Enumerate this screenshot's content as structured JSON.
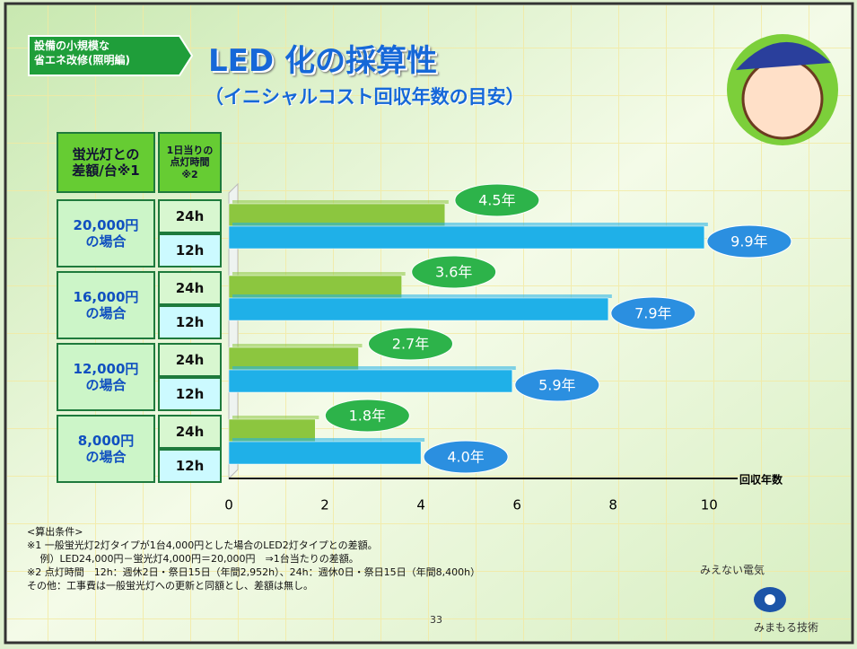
{
  "slide": {
    "tag": "設備の小規模な\n省エネ改修(照明編)",
    "title": "LED 化の採算性",
    "subtitle": "（イニシャルコスト回収年数の目安）",
    "header_diff": "蛍光灯との\n差額/台※1",
    "header_hours": "1日当りの\n点灯時間\n※2",
    "notes": [
      "<算出条件>",
      "※1 一般蛍光灯2灯タイプが1台4,000円とした場合のLED2灯タイプとの差額。",
      "　 例）LED24,000円－蛍光灯4,000円＝20,000円　⇒1台当たりの差額。",
      "※2 点灯時間　12h：週休2日・祭日15日（年間2,952h）、24h：週休0日・祭日15日（年間8,400h）",
      "その他：工事費は一般蛍光灯への更新と同額とし、差額は無し。"
    ],
    "logo_top": "みえない電気",
    "logo_bottom": "みまもる技術",
    "page": "33"
  },
  "chart_data": {
    "type": "hbar",
    "x_label": "回収年数",
    "categories": [
      "20,000円\nの場合",
      "16,000円\nの場合",
      "12,000円\nの場合",
      "8,000円\nの場合"
    ],
    "series": [
      {
        "name": "24h",
        "color": "#8cc63f",
        "values": [
          4.5,
          3.6,
          2.7,
          1.8
        ],
        "value_labels": [
          "4.5年",
          "3.6年",
          "2.7年",
          "1.8年"
        ],
        "label_color": "#2db34a"
      },
      {
        "name": "12h",
        "color": "#1fb0e8",
        "values": [
          9.9,
          7.9,
          5.9,
          4.0
        ],
        "value_labels": [
          "9.9年",
          "7.9年",
          "5.9年",
          "4.0年"
        ],
        "label_color": "#2b8fe0"
      }
    ],
    "xlim": [
      0,
      10.5
    ],
    "xticks": [
      0,
      2,
      4,
      6,
      8,
      10
    ]
  }
}
